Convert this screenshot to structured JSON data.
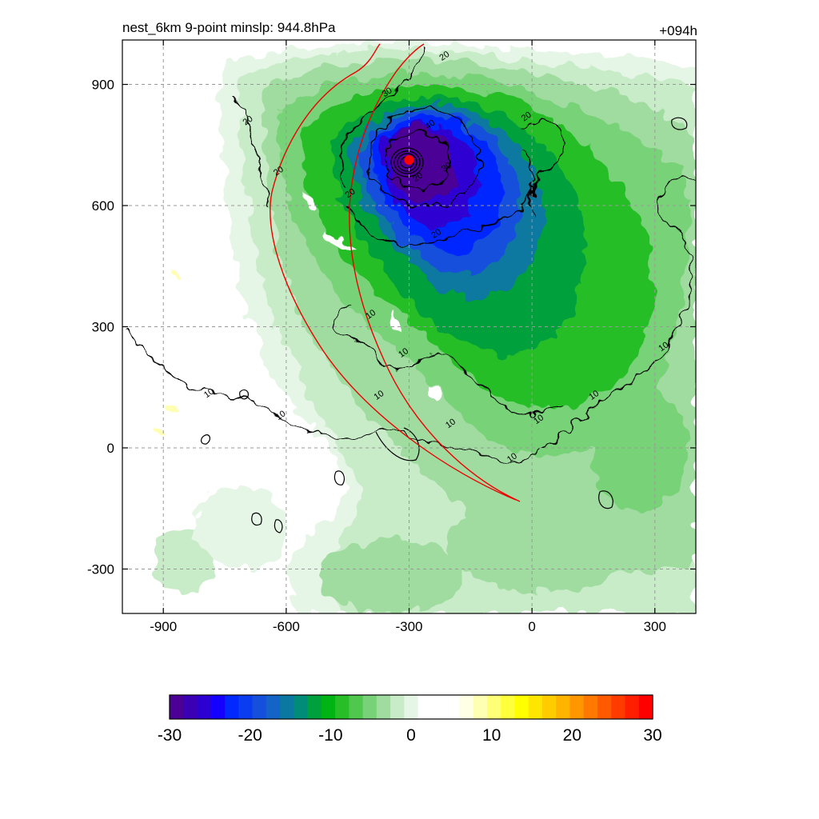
{
  "chart_data": {
    "type": "heatmap",
    "title_left": "nest_6km  9-point minslp: 944.8hPa",
    "title_right": "+094h",
    "xlim": [
      -1000,
      400
    ],
    "ylim": [
      -410,
      1010
    ],
    "x_ticks": [
      -900,
      -600,
      -300,
      0,
      300
    ],
    "y_ticks": [
      900,
      600,
      300,
      0,
      -300
    ],
    "grid": "dashed",
    "storm_center": {
      "x": -300,
      "y": 713,
      "color": "#ff0000"
    },
    "colorbar": {
      "min": -30,
      "max": 30,
      "step": 2,
      "ticks": [
        -30,
        -20,
        -10,
        0,
        10,
        20,
        30
      ],
      "colors": [
        "#4b0096",
        "#3c00b4",
        "#2d00d2",
        "#1400ff",
        "#0028ff",
        "#0a3cf0",
        "#1450dc",
        "#1464c8",
        "#0a78a0",
        "#008c78",
        "#00a03c",
        "#00b414",
        "#28be28",
        "#50c850",
        "#78d278",
        "#a0dca0",
        "#c8ecc8",
        "#e6f6e6",
        "#ffffff",
        "#ffffff",
        "#ffffff",
        "#ffffe6",
        "#ffffb4",
        "#ffff78",
        "#ffff3c",
        "#ffff00",
        "#ffe600",
        "#ffcc00",
        "#ffb400",
        "#ff9600",
        "#ff7800",
        "#ff5a00",
        "#ff3c00",
        "#ff1e00",
        "#ff0000"
      ]
    },
    "fill_levels": [
      {
        "value": -4,
        "color": "#e6f6e6"
      },
      {
        "value": -6,
        "color": "#c8ecc8"
      },
      {
        "value": -8,
        "color": "#a0dca0"
      },
      {
        "value": -10,
        "color": "#78d278"
      },
      {
        "value": -12,
        "color": "#28be28"
      },
      {
        "value": -14,
        "color": "#00a03c"
      },
      {
        "value": -16,
        "color": "#0a78a0"
      },
      {
        "value": -18,
        "color": "#1450dc"
      },
      {
        "value": -20,
        "color": "#0028ff"
      },
      {
        "value": -24,
        "color": "#2d00d2"
      },
      {
        "value": -28,
        "color": "#4b0096"
      }
    ],
    "contour_labels": [
      {
        "text": "10",
        "x": -390,
        "y": 325
      },
      {
        "text": "10",
        "x": -310,
        "y": 230
      },
      {
        "text": "10",
        "x": -785,
        "y": 130
      },
      {
        "text": "10",
        "x": -610,
        "y": 75
      },
      {
        "text": "10",
        "x": -370,
        "y": 125
      },
      {
        "text": "10",
        "x": -195,
        "y": 55
      },
      {
        "text": "10",
        "x": -45,
        "y": -30
      },
      {
        "text": "10",
        "x": 20,
        "y": 65
      },
      {
        "text": "10",
        "x": 155,
        "y": 125
      },
      {
        "text": "10",
        "x": 325,
        "y": 245
      },
      {
        "text": "20",
        "x": -690,
        "y": 805
      },
      {
        "text": "20",
        "x": -615,
        "y": 680
      },
      {
        "text": "20",
        "x": -440,
        "y": 625
      },
      {
        "text": "20",
        "x": -230,
        "y": 525
      },
      {
        "text": "20",
        "x": -10,
        "y": 815
      },
      {
        "text": "20",
        "x": -210,
        "y": 965
      },
      {
        "text": "30",
        "x": -350,
        "y": 875
      },
      {
        "text": "30",
        "x": -205,
        "y": 690
      },
      {
        "text": "40",
        "x": -245,
        "y": 795
      },
      {
        "text": "20",
        "x": -275,
        "y": 665
      }
    ]
  }
}
